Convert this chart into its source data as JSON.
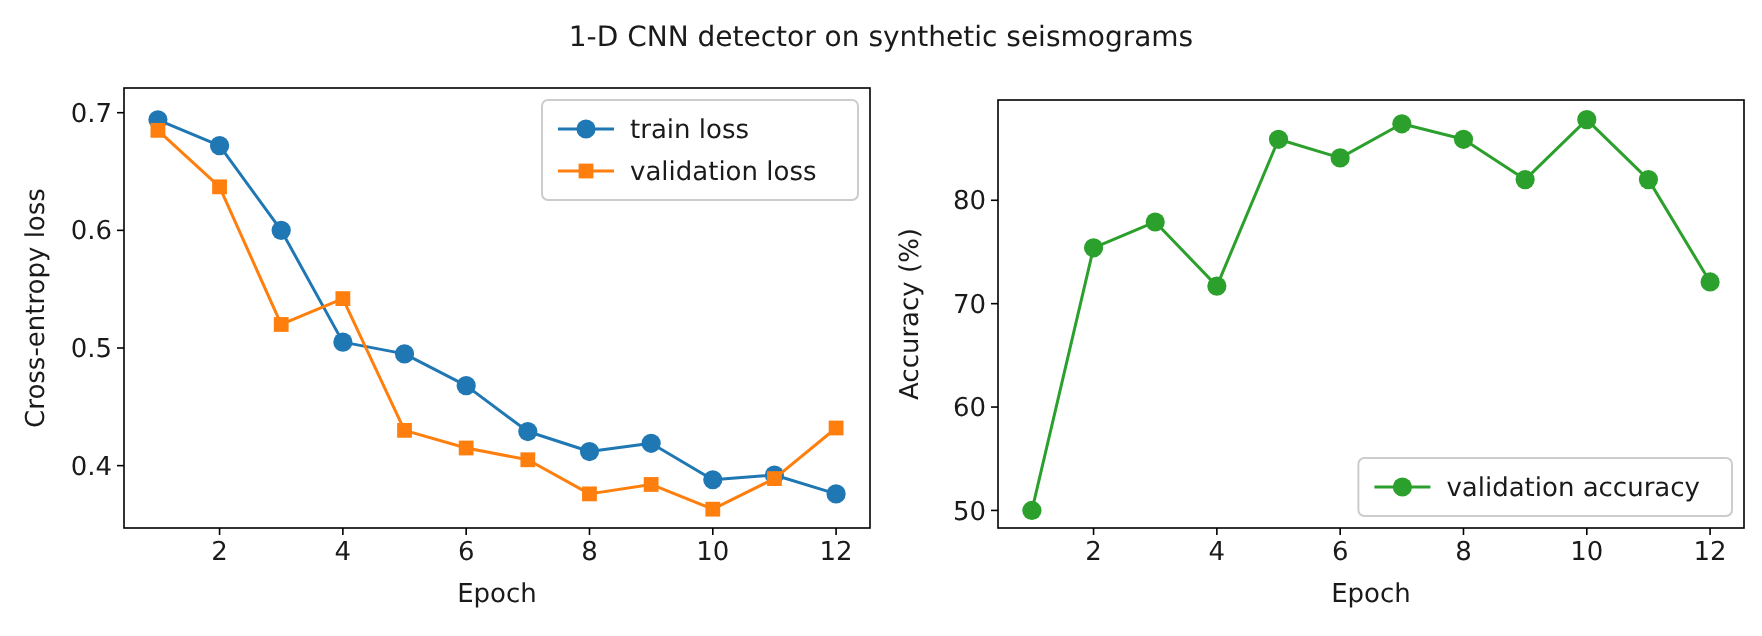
{
  "chart_data": [
    {
      "type": "line",
      "title": "1-D CNN detector on synthetic seismograms",
      "xlabel": "Epoch",
      "ylabel": "Cross-entropy loss",
      "x": [
        1,
        2,
        3,
        4,
        5,
        6,
        7,
        8,
        9,
        10,
        11,
        12
      ],
      "series": [
        {
          "name": "train loss",
          "color": "#1f77b4",
          "marker": "circle",
          "values": [
            0.694,
            0.672,
            0.6,
            0.505,
            0.495,
            0.468,
            0.429,
            0.412,
            0.419,
            0.388,
            0.392,
            0.376
          ]
        },
        {
          "name": "validation loss",
          "color": "#ff7f0e",
          "marker": "square",
          "values": [
            0.685,
            0.637,
            0.52,
            0.542,
            0.43,
            0.415,
            0.405,
            0.376,
            0.384,
            0.363,
            0.389,
            0.432
          ]
        }
      ],
      "xlim": [
        0.45,
        12.55
      ],
      "xticks": [
        2,
        4,
        6,
        8,
        10,
        12
      ],
      "ylim": [
        0.347,
        0.721
      ],
      "yticks": [
        0.4,
        0.5,
        0.6,
        0.7
      ],
      "legend": "top right",
      "grid": false
    },
    {
      "type": "line",
      "xlabel": "Epoch",
      "ylabel": "Accuracy (%)",
      "x": [
        1,
        2,
        3,
        4,
        5,
        6,
        7,
        8,
        9,
        10,
        11,
        12
      ],
      "series": [
        {
          "name": "validation accuracy",
          "color": "#2ca02c",
          "marker": "circle",
          "values": [
            50,
            75.4,
            77.9,
            71.7,
            85.9,
            84.1,
            87.4,
            85.9,
            82.0,
            87.8,
            82.0,
            72.1
          ]
        }
      ],
      "xlim": [
        0.45,
        12.55
      ],
      "xticks": [
        2,
        4,
        6,
        8,
        10,
        12
      ],
      "ylim": [
        48.3,
        89.7
      ],
      "yticks": [
        50,
        60,
        70,
        80
      ],
      "legend": "bottom right",
      "grid": false
    }
  ]
}
